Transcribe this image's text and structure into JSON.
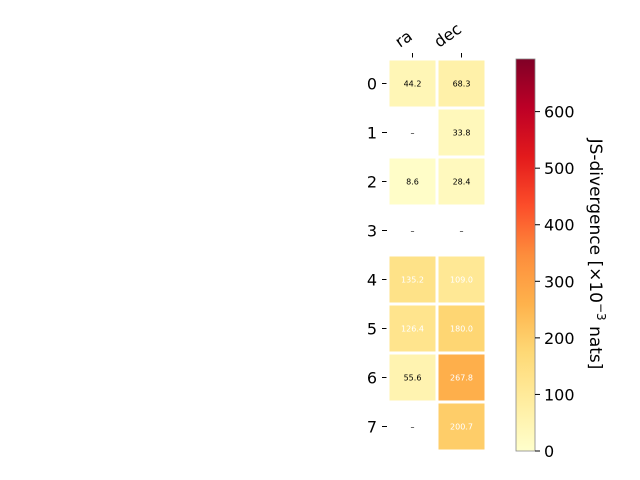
{
  "chart_data": {
    "type": "heatmap",
    "title": "",
    "xlabel": "",
    "ylabel": "",
    "columns": [
      "ra",
      "dec"
    ],
    "rows": [
      "0",
      "1",
      "2",
      "3",
      "4",
      "5",
      "6",
      "7"
    ],
    "values": [
      [
        44.2,
        68.3
      ],
      [
        null,
        33.8
      ],
      [
        8.6,
        28.4
      ],
      [
        null,
        null
      ],
      [
        135.2,
        109.0
      ],
      [
        126.4,
        180.0
      ],
      [
        55.6,
        267.8
      ],
      [
        null,
        200.7
      ]
    ],
    "cell_labels": [
      [
        "44.2",
        "68.3"
      ],
      [
        "–",
        "33.8"
      ],
      [
        "8.6",
        "28.4"
      ],
      [
        "–",
        "–"
      ],
      [
        "135.2",
        "109.0"
      ],
      [
        "126.4",
        "180.0"
      ],
      [
        "55.6",
        "267.8"
      ],
      [
        "–",
        "200.7"
      ]
    ],
    "colorbar": {
      "label_main": "JS-divergence [×10",
      "label_sup": "−3",
      "label_tail": " nats]",
      "range": [
        0,
        693
      ],
      "ticks": [
        "0",
        "100",
        "200",
        "300",
        "400",
        "500",
        "600"
      ],
      "tick_values": [
        0,
        100,
        200,
        300,
        400,
        500,
        600
      ],
      "colormap": "YlOrRd"
    }
  }
}
